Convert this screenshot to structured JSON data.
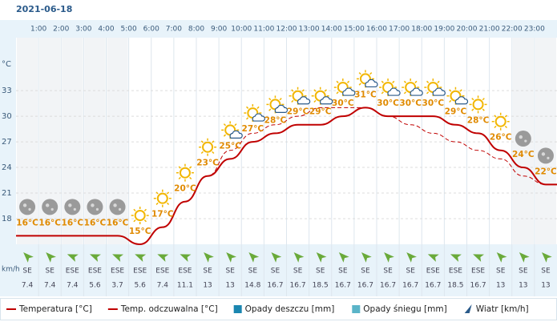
{
  "chart_data": {
    "type": "line",
    "title": "2021-06-18",
    "yunit": "°C",
    "xlim": [
      0,
      24
    ],
    "xticks": [
      {
        "value": 1,
        "label": "1:00"
      },
      {
        "value": 2,
        "label": "2:00"
      },
      {
        "value": 3,
        "label": "3:00"
      },
      {
        "value": 4,
        "label": "4:00"
      },
      {
        "value": 5,
        "label": "5:00"
      },
      {
        "value": 6,
        "label": "6:00"
      },
      {
        "value": 7,
        "label": "7:00"
      },
      {
        "value": 8,
        "label": "8:00"
      },
      {
        "value": 9,
        "label": "9:00"
      },
      {
        "value": 10,
        "label": "10:00"
      },
      {
        "value": 11,
        "label": "11:00"
      },
      {
        "value": 12,
        "label": "12:00"
      },
      {
        "value": 13,
        "label": "13:00"
      },
      {
        "value": 14,
        "label": "14:00"
      },
      {
        "value": 15,
        "label": "15:00"
      },
      {
        "value": 16,
        "label": "16:00"
      },
      {
        "value": 17,
        "label": "17:00"
      },
      {
        "value": 18,
        "label": "18:00"
      },
      {
        "value": 19,
        "label": "19:00"
      },
      {
        "value": 20,
        "label": "20:00"
      },
      {
        "value": 21,
        "label": "21:00"
      },
      {
        "value": 22,
        "label": "22:00"
      },
      {
        "value": 23,
        "label": "23:00"
      }
    ],
    "x": [
      0.5,
      1.5,
      2.5,
      3.5,
      4.5,
      5.5,
      6.5,
      7.5,
      8.5,
      9.5,
      10.5,
      11.5,
      12.5,
      13.5,
      14.5,
      15.5,
      16.5,
      17.5,
      18.5,
      19.5,
      20.5,
      21.5,
      22.5,
      23.5
    ],
    "ylim": [
      15,
      39.2
    ],
    "yticks": [
      18,
      21,
      24,
      27,
      30,
      33
    ],
    "grid": true,
    "series": [
      {
        "name": "Temperatura [°C]",
        "color": "#c00000",
        "values": [
          16,
          16,
          16,
          16,
          16,
          15,
          17,
          20,
          23,
          25,
          27,
          28,
          29,
          29,
          30,
          31,
          30,
          30,
          30,
          29,
          28,
          26,
          24,
          22
        ],
        "value_labels": [
          "16°C",
          "16°C",
          "16°C",
          "16°C",
          "16°C",
          "15°C",
          "17°C",
          "20°C",
          "23°C",
          "25°C",
          "27°C",
          "28°C",
          "29°C",
          "29°C",
          "30°C",
          "31°C",
          "30°C",
          "30°C",
          "30°C",
          "29°C",
          "28°C",
          "26°C",
          "24°C",
          "22°C"
        ]
      },
      {
        "name": "Temp. odczuwalna [°C]",
        "color": "#c00000",
        "dashed": true,
        "values": [
          16,
          16,
          16,
          16,
          16,
          15,
          17,
          20,
          23,
          26,
          28,
          29,
          30,
          31,
          31,
          31,
          30,
          29,
          28,
          27,
          26,
          25,
          23,
          22
        ]
      }
    ],
    "legend_extra": [
      {
        "name": "Opady deszczu [mm]",
        "color": "#1a86b0"
      },
      {
        "name": "Opady śniegu [mm]",
        "color": "#5ab4c8"
      }
    ],
    "wind": {
      "name": "Wiatr [km/h]",
      "unit": "km/h",
      "directions": [
        "SE",
        "SE",
        "ESE",
        "ESE",
        "ESE",
        "ESE",
        "ESE",
        "ESE",
        "SE",
        "SE",
        "SE",
        "SE",
        "SE",
        "SE",
        "SE",
        "SE",
        "SE",
        "SE",
        "ESE",
        "ESE",
        "ESE",
        "SE",
        "SE",
        "SE"
      ],
      "speeds": [
        7.4,
        7.4,
        7.4,
        5.6,
        3.7,
        5.6,
        7.4,
        11.1,
        13,
        13,
        14.8,
        16.7,
        16.7,
        18.5,
        16.7,
        16.7,
        16.7,
        16.7,
        16.7,
        18.5,
        16.7,
        13,
        13,
        13
      ]
    }
  }
}
